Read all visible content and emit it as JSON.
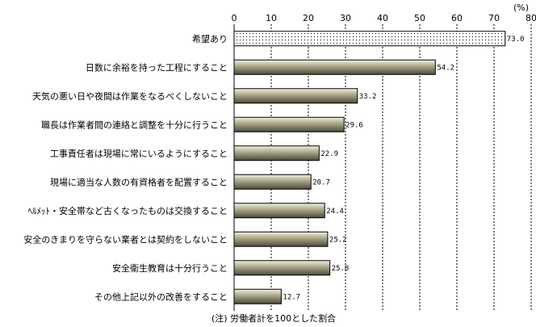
{
  "chart_data": {
    "type": "bar",
    "orientation": "horizontal",
    "unit_label": "(%)",
    "categories": [
      "希望あり",
      "日数に余裕を持った工程にすること",
      "天気の悪い日や夜間は作業をなるべくしないこと",
      "職長は作業者間の連絡と調整を十分に行うこと",
      "工事責任者は現場に常にいるようにすること",
      "現場に適当な人数の有資格者を配置すること",
      "ﾍﾙﾒｯﾄ・安全帯など古くなったものは交換すること",
      "安全のきまりを守らない業者とは契約をしないこと",
      "安全衛生教育は十分行うこと",
      "その他上記以外の改善をすること"
    ],
    "values": [
      73.0,
      54.2,
      33.2,
      29.6,
      22.9,
      20.7,
      24.4,
      25.2,
      25.8,
      12.7
    ],
    "value_labels": [
      "73.0",
      "54.2",
      "33.2",
      "29.6",
      "22.9",
      "20.7",
      "24.4",
      "25.2",
      "25.8",
      "12.7"
    ],
    "xlim": [
      0,
      80
    ],
    "ticks": [
      0,
      10,
      20,
      30,
      40,
      50,
      60,
      70,
      80
    ],
    "tick_labels": [
      "0",
      "10",
      "20",
      "30",
      "40",
      "50",
      "60",
      "70",
      "80"
    ],
    "grid": "vertical dashed",
    "note": "(注) 労働者計を100とした割合",
    "colors": {
      "bar_light": "#f2f2e4",
      "bar_mid": "#b8b497",
      "bar_dark": "#4d4a39",
      "dotted_bar_fill": "#ffffff",
      "dotted_bar_pattern": "#000000",
      "grid": "#000000"
    }
  }
}
